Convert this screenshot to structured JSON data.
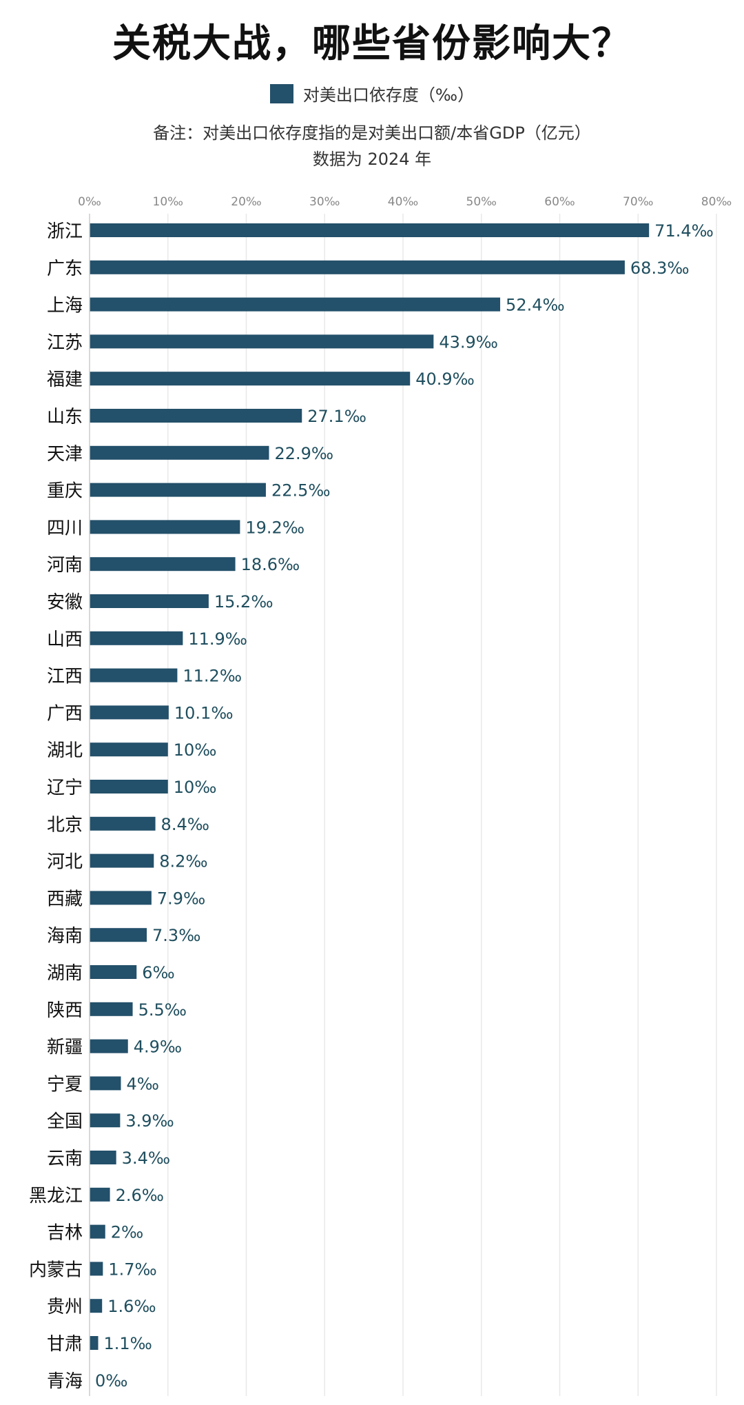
{
  "chart_data": {
    "type": "bar",
    "orientation": "horizontal",
    "title": "关税大战，哪些省份影响大？",
    "legend": "对美出口依存度（‰）",
    "note_line1": "备注：对美出口依存度指的是对美出口额/本省GDP（亿元）",
    "note_line2": "数据为 2024 年",
    "xlim": [
      0,
      80
    ],
    "x_ticks": [
      "0‰",
      "10‰",
      "20‰",
      "30‰",
      "40‰",
      "50‰",
      "60‰",
      "70‰",
      "80‰"
    ],
    "grid": true,
    "bar_color": "#23506a",
    "value_label_color": "#1f4e5e",
    "categories": [
      "浙江",
      "广东",
      "上海",
      "江苏",
      "福建",
      "山东",
      "天津",
      "重庆",
      "四川",
      "河南",
      "安徽",
      "山西",
      "江西",
      "广西",
      "湖北",
      "辽宁",
      "北京",
      "河北",
      "西藏",
      "海南",
      "湖南",
      "陕西",
      "新疆",
      "宁夏",
      "全国",
      "云南",
      "黑龙江",
      "吉林",
      "内蒙古",
      "贵州",
      "甘肃",
      "青海"
    ],
    "values": [
      71.4,
      68.3,
      52.4,
      43.9,
      40.9,
      27.1,
      22.9,
      22.5,
      19.2,
      18.6,
      15.2,
      11.9,
      11.2,
      10.1,
      10,
      10,
      8.4,
      8.2,
      7.9,
      7.3,
      6,
      5.5,
      4.9,
      4,
      3.9,
      3.4,
      2.6,
      2,
      1.7,
      1.6,
      1.1,
      0
    ],
    "value_labels": [
      "71.4‰",
      "68.3‰",
      "52.4‰",
      "43.9‰",
      "40.9‰",
      "27.1‰",
      "22.9‰",
      "22.5‰",
      "19.2‰",
      "18.6‰",
      "15.2‰",
      "11.9‰",
      "11.2‰",
      "10.1‰",
      "10‰",
      "10‰",
      "8.4‰",
      "8.2‰",
      "7.9‰",
      "7.3‰",
      "6‰",
      "5.5‰",
      "4.9‰",
      "4‰",
      "3.9‰",
      "3.4‰",
      "2.6‰",
      "2‰",
      "1.7‰",
      "1.6‰",
      "1.1‰",
      "0‰"
    ]
  }
}
